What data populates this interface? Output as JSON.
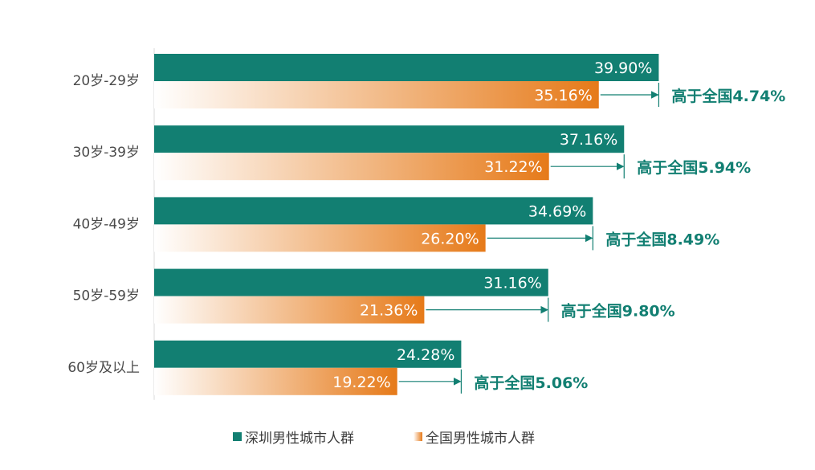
{
  "chart_data": {
    "type": "bar",
    "orientation": "horizontal",
    "categories": [
      "20岁-29岁",
      "30岁-39岁",
      "40岁-49岁",
      "50岁-59岁",
      "60岁及以上"
    ],
    "series": [
      {
        "name": "深圳男性城市人群",
        "values": [
          39.9,
          37.16,
          34.69,
          31.16,
          24.28
        ],
        "labels": [
          "39.90%",
          "37.16%",
          "34.69%",
          "31.16%",
          "24.28%"
        ]
      },
      {
        "name": "全国男性城市人群",
        "values": [
          35.16,
          31.22,
          26.2,
          21.36,
          19.22
        ],
        "labels": [
          "35.16%",
          "31.22%",
          "26.20%",
          "21.36%",
          "19.22%"
        ]
      }
    ],
    "annotations": [
      "高于全国4.74%",
      "高于全国5.94%",
      "高于全国8.49%",
      "高于全国9.80%",
      "高于全国5.06%"
    ],
    "xlim": [
      0,
      40
    ],
    "grid": false,
    "legend_position": "bottom"
  },
  "colors": {
    "shenzhen": "#127f72",
    "national": "#e67a19",
    "national_fade": "#ffffff",
    "annotation": "#127f72",
    "arrow": "#127f72"
  }
}
